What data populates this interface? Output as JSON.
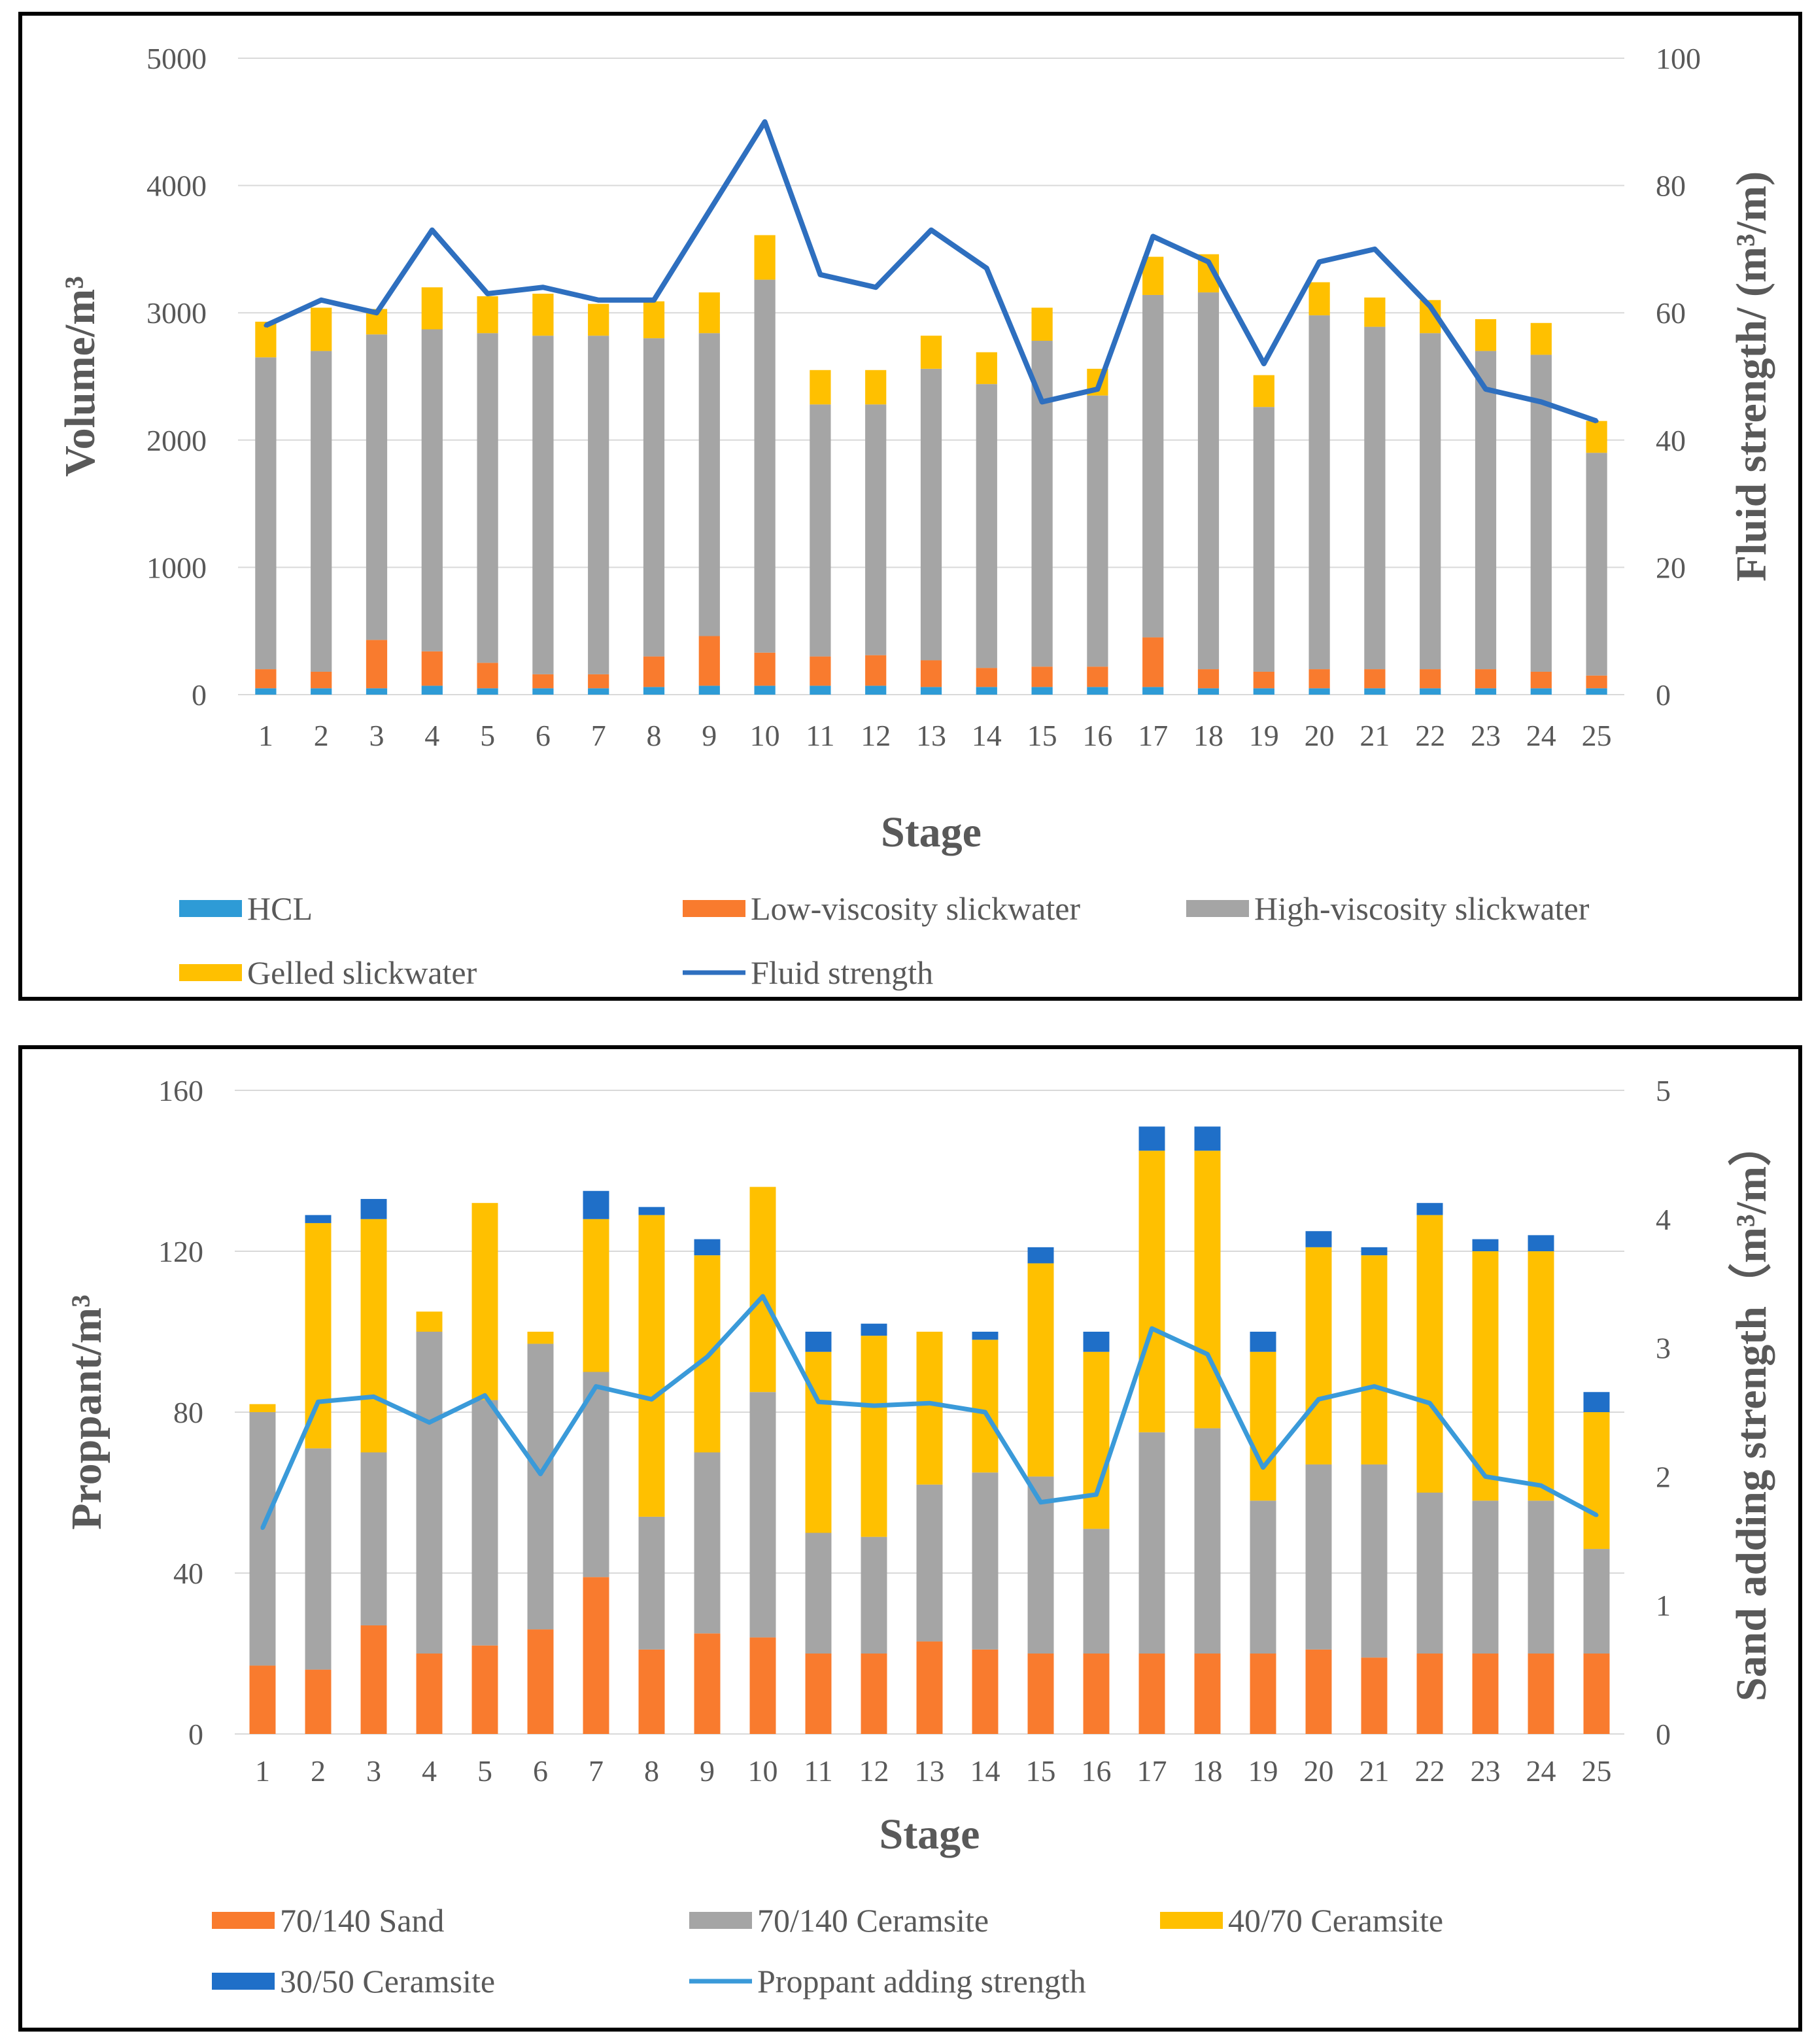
{
  "chart_data": [
    {
      "type": "bar",
      "stacked": true,
      "categories": [
        "1",
        "2",
        "3",
        "4",
        "5",
        "6",
        "7",
        "8",
        "9",
        "10",
        "11",
        "12",
        "13",
        "14",
        "15",
        "16",
        "17",
        "18",
        "19",
        "20",
        "21",
        "22",
        "23",
        "24",
        "25"
      ],
      "xlabel": "Stage",
      "ylabel": "Volume/m³",
      "y2label": "Fluid strength/ (m³/m)",
      "ylim": [
        0,
        5000
      ],
      "y2lim": [
        0,
        100
      ],
      "yticks": [
        "0",
        "1000",
        "2000",
        "3000",
        "4000",
        "5000"
      ],
      "y2ticks": [
        "0",
        "20",
        "40",
        "60",
        "80",
        "100"
      ],
      "grid": true,
      "series": [
        {
          "name": "HCL",
          "color": "#2E9BD6",
          "values": [
            50,
            50,
            50,
            70,
            50,
            50,
            50,
            60,
            70,
            70,
            70,
            70,
            60,
            60,
            60,
            60,
            60,
            50,
            50,
            50,
            50,
            50,
            50,
            50,
            50
          ]
        },
        {
          "name": "Low-viscosity slickwater",
          "color": "#F97B2E",
          "values": [
            150,
            130,
            380,
            270,
            200,
            110,
            110,
            240,
            390,
            260,
            230,
            240,
            210,
            150,
            160,
            160,
            390,
            150,
            130,
            150,
            150,
            150,
            150,
            130,
            100
          ]
        },
        {
          "name": "High-viscosity slickwater",
          "color": "#A5A5A5",
          "values": [
            2450,
            2520,
            2400,
            2530,
            2590,
            2660,
            2660,
            2500,
            2380,
            2930,
            1980,
            1970,
            2290,
            2230,
            2560,
            2130,
            2690,
            2960,
            2080,
            2780,
            2690,
            2640,
            2500,
            2490,
            1750
          ]
        },
        {
          "name": "Gelled slickwater",
          "color": "#FFC000",
          "values": [
            280,
            340,
            200,
            330,
            290,
            330,
            250,
            290,
            320,
            350,
            270,
            270,
            260,
            250,
            260,
            210,
            300,
            300,
            250,
            260,
            230,
            260,
            250,
            250,
            250
          ]
        }
      ],
      "line": {
        "name": "Fluid strength",
        "color": "#2E6FBF",
        "values": [
          58,
          62,
          60,
          73,
          63,
          64,
          62,
          62,
          76,
          90,
          66,
          64,
          73,
          67,
          46,
          48,
          72,
          68,
          52,
          68,
          70,
          61,
          48,
          46,
          43
        ]
      },
      "legend": [
        "HCL",
        "Low-viscosity slickwater",
        "High-viscosity slickwater",
        "Gelled slickwater",
        "Fluid strength"
      ],
      "legend_position": "bottom"
    },
    {
      "type": "bar",
      "stacked": true,
      "categories": [
        "1",
        "2",
        "3",
        "4",
        "5",
        "6",
        "7",
        "8",
        "9",
        "10",
        "11",
        "12",
        "13",
        "14",
        "15",
        "16",
        "17",
        "18",
        "19",
        "20",
        "21",
        "22",
        "23",
        "24",
        "25"
      ],
      "xlabel": "Stage",
      "ylabel": "Proppant/m³",
      "y2label": "Sand adding strength（m³/m）",
      "ylim": [
        0,
        160
      ],
      "y2lim": [
        0,
        5
      ],
      "yticks": [
        "0",
        "40",
        "80",
        "120",
        "160"
      ],
      "y2ticks": [
        "0",
        "1",
        "2",
        "3",
        "4",
        "5"
      ],
      "grid": true,
      "series": [
        {
          "name": "70/140 Sand",
          "color": "#F97B2E",
          "values": [
            17,
            16,
            27,
            20,
            22,
            26,
            39,
            21,
            25,
            24,
            20,
            20,
            23,
            21,
            20,
            20,
            20,
            20,
            20,
            21,
            19,
            20,
            20,
            20,
            20
          ]
        },
        {
          "name": "70/140 Ceramsite",
          "color": "#A5A5A5",
          "values": [
            63,
            55,
            43,
            80,
            61,
            71,
            51,
            33,
            45,
            61,
            30,
            29,
            39,
            44,
            44,
            31,
            55,
            56,
            38,
            46,
            48,
            40,
            38,
            38,
            26
          ]
        },
        {
          "name": "40/70 Ceramsite",
          "color": "#FFC000",
          "values": [
            2,
            56,
            58,
            5,
            49,
            3,
            38,
            75,
            49,
            51,
            45,
            50,
            38,
            33,
            53,
            44,
            70,
            69,
            37,
            54,
            52,
            69,
            62,
            62,
            34
          ]
        },
        {
          "name": "30/50 Ceramsite",
          "color": "#1F6FC8",
          "values": [
            0,
            2,
            5,
            0,
            0,
            0,
            7,
            2,
            4,
            0,
            5,
            3,
            0,
            2,
            4,
            5,
            6,
            6,
            5,
            4,
            2,
            3,
            3,
            4,
            5
          ]
        }
      ],
      "line": {
        "name": "Proppant adding strength",
        "color": "#3A9AD9",
        "values": [
          1.6,
          2.58,
          2.62,
          2.42,
          2.63,
          2.02,
          2.7,
          2.6,
          2.93,
          3.4,
          2.58,
          2.55,
          2.57,
          2.5,
          1.8,
          1.86,
          3.15,
          2.95,
          2.07,
          2.6,
          2.7,
          2.57,
          2.0,
          1.93,
          1.7
        ]
      },
      "legend": [
        "70/140 Sand",
        "70/140 Ceramsite",
        "40/70 Ceramsite",
        "30/50 Ceramsite",
        "Proppant adding strength"
      ],
      "legend_position": "bottom"
    }
  ]
}
